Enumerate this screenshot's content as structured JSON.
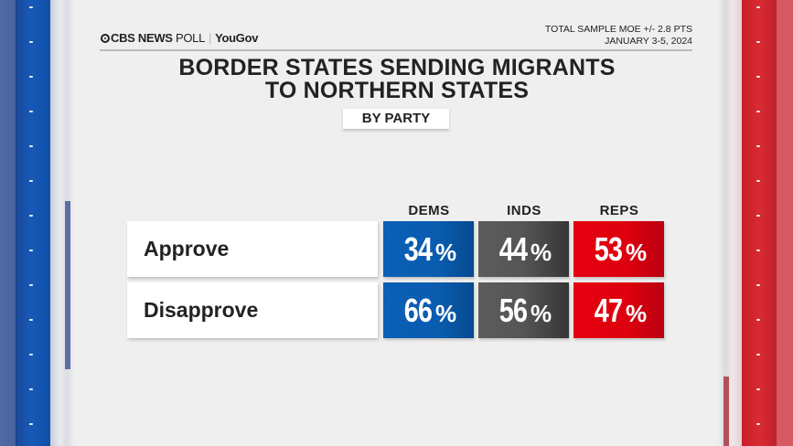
{
  "header": {
    "brand": "CBS NEWS",
    "brand_suffix": "POLL",
    "partner": "YouGov",
    "moe": "TOTAL SAMPLE MOE +/- 2.8 PTS",
    "dates": "JANUARY 3-5, 2024"
  },
  "title_line1": "BORDER STATES SENDING MIGRANTS",
  "title_line2": "TO NORTHERN STATES",
  "subtitle": "BY PARTY",
  "columns": [
    "DEMS",
    "INDS",
    "REPS"
  ],
  "rows": [
    {
      "label": "Approve",
      "values": [
        "34",
        "44",
        "53"
      ]
    },
    {
      "label": "Disapprove",
      "values": [
        "66",
        "56",
        "47"
      ]
    }
  ],
  "percent_sign": "%",
  "colors": {
    "dems": "#0a5cb0",
    "inds": "#555555",
    "reps": "#dd000e"
  },
  "chart_data": {
    "type": "table",
    "title": "Border States Sending Migrants to Northern States",
    "subtitle": "By Party",
    "categories": [
      "Dems",
      "Inds",
      "Reps"
    ],
    "series": [
      {
        "name": "Approve",
        "values": [
          34,
          44,
          53
        ]
      },
      {
        "name": "Disapprove",
        "values": [
          66,
          56,
          47
        ]
      }
    ],
    "unit": "%",
    "note": "Total sample MOE +/- 2.8 pts; January 3-5, 2024"
  }
}
